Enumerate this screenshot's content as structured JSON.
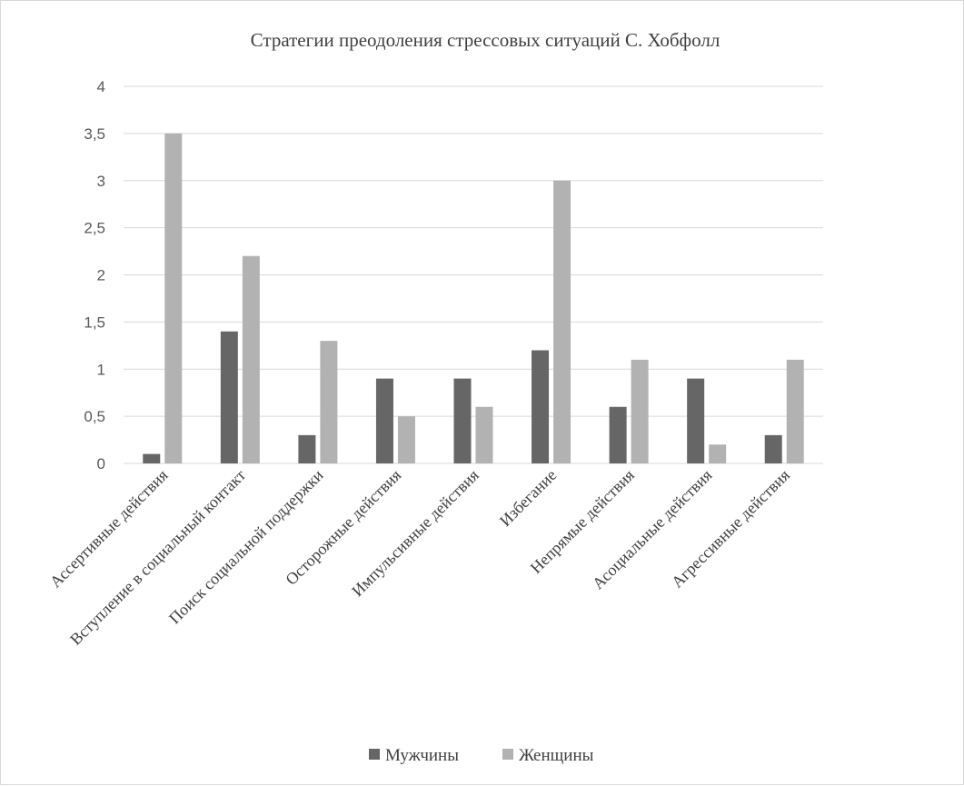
{
  "chart_data": {
    "type": "bar",
    "title": "Стратегии преодоления стрессовых ситуаций С. Хобфолл",
    "xlabel": "",
    "ylabel": "",
    "ylim": [
      0,
      4
    ],
    "yticks": [
      "0",
      "0,5",
      "1",
      "1,5",
      "2",
      "2,5",
      "3",
      "3,5",
      "4"
    ],
    "grid": true,
    "legend_position": "bottom",
    "categories": [
      "Ассертивные действия",
      "Вступление в социальный контакт",
      "Поиск социальной поддержки",
      "Осторожные действия",
      "Импульсивные действия",
      "Избегание",
      "Непрямые действия",
      "Асоциальные действия",
      "Агрессивные действия"
    ],
    "series": [
      {
        "name": "Мужчины",
        "color": "#666666",
        "values": [
          0.1,
          1.4,
          0.3,
          0.9,
          0.9,
          1.2,
          0.6,
          0.9,
          0.3
        ]
      },
      {
        "name": "Женщины",
        "color": "#b2b2b2",
        "values": [
          3.5,
          2.2,
          1.3,
          0.5,
          0.6,
          3.0,
          1.1,
          0.2,
          1.1
        ]
      }
    ]
  }
}
